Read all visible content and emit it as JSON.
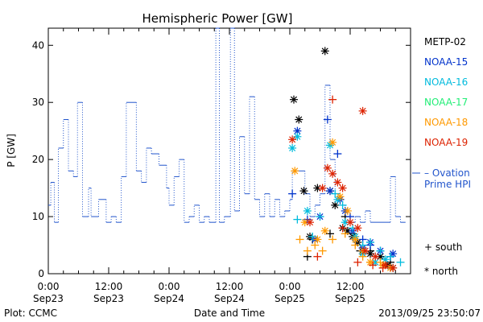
{
  "chart_data": {
    "type": "scatter",
    "title": "Hemispheric Power [GW]",
    "ylabel": "P [GW]",
    "xlabel": "Date and Time",
    "ylim": [
      0,
      43
    ],
    "y_ticks": [
      0,
      10,
      20,
      30,
      40
    ],
    "x_range_hours": [
      0,
      72
    ],
    "x_ticks": [
      {
        "hours": 0,
        "time": "0:00",
        "date": "Sep23"
      },
      {
        "hours": 12,
        "time": "12:00",
        "date": "Sep23"
      },
      {
        "hours": 24,
        "time": "0:00",
        "date": "Sep24"
      },
      {
        "hours": 36,
        "time": "12:00",
        "date": "Sep24"
      },
      {
        "hours": 48,
        "time": "0:00",
        "date": "Sep25"
      },
      {
        "hours": 60,
        "time": "12:00",
        "date": "Sep25"
      }
    ],
    "footer_left": "Plot: CCMC",
    "footer_right": "2013/09/25 23:50:07",
    "ovation": {
      "label_line1": "– Ovation",
      "label_line2": "Prime HPI",
      "color": "#2255cc",
      "points": [
        [
          0,
          12
        ],
        [
          0.5,
          16
        ],
        [
          1.2,
          9
        ],
        [
          2,
          22
        ],
        [
          3,
          27
        ],
        [
          4,
          18
        ],
        [
          5,
          17
        ],
        [
          5.8,
          30
        ],
        [
          6.8,
          10
        ],
        [
          8,
          15
        ],
        [
          8.5,
          10
        ],
        [
          10,
          13
        ],
        [
          11.5,
          9
        ],
        [
          12.5,
          10
        ],
        [
          13.5,
          9
        ],
        [
          14.5,
          17
        ],
        [
          15.5,
          30
        ],
        [
          17.5,
          18
        ],
        [
          18.5,
          16
        ],
        [
          19.5,
          22
        ],
        [
          20.5,
          21
        ],
        [
          22,
          19
        ],
        [
          23.5,
          15
        ],
        [
          24,
          12
        ],
        [
          25,
          17
        ],
        [
          26,
          20
        ],
        [
          27,
          9
        ],
        [
          28,
          10
        ],
        [
          29,
          12
        ],
        [
          30,
          9
        ],
        [
          31,
          10
        ],
        [
          32,
          9
        ],
        [
          33.3,
          43
        ],
        [
          34,
          9
        ],
        [
          35,
          10
        ],
        [
          36.2,
          43
        ],
        [
          37,
          11
        ],
        [
          38,
          24
        ],
        [
          39,
          14
        ],
        [
          40,
          31
        ],
        [
          41,
          13
        ],
        [
          42,
          10
        ],
        [
          43,
          14
        ],
        [
          44,
          10
        ],
        [
          45,
          13
        ],
        [
          46,
          10
        ],
        [
          47,
          11
        ],
        [
          48,
          13
        ],
        [
          48.5,
          18
        ],
        [
          51,
          14
        ],
        [
          52,
          10
        ],
        [
          53,
          12
        ],
        [
          54,
          14
        ],
        [
          55,
          33
        ],
        [
          56,
          20
        ],
        [
          57,
          14
        ],
        [
          58,
          12
        ],
        [
          59,
          9
        ],
        [
          61,
          10
        ],
        [
          62,
          9
        ],
        [
          63,
          11
        ],
        [
          64,
          9
        ],
        [
          68,
          17
        ],
        [
          69,
          10
        ],
        [
          70,
          9
        ]
      ]
    },
    "series": [
      {
        "name": "METP-02",
        "color": "#000000",
        "south": [
          [
            51.5,
            3
          ],
          [
            52.5,
            6
          ],
          [
            56,
            7
          ],
          [
            58,
            13
          ],
          [
            59,
            10
          ],
          [
            60.5,
            7
          ],
          [
            62,
            4
          ],
          [
            64,
            4
          ],
          [
            66,
            3
          ],
          [
            68,
            2
          ]
        ],
        "north": [
          [
            48.8,
            30.5
          ],
          [
            49.8,
            27
          ],
          [
            50.8,
            14.5
          ],
          [
            52,
            6.5
          ],
          [
            53.5,
            15
          ],
          [
            55,
            39
          ],
          [
            56,
            14.5
          ],
          [
            57,
            12
          ],
          [
            58.5,
            8
          ],
          [
            59.5,
            7.5
          ],
          [
            60.5,
            6.5
          ],
          [
            61.5,
            5.5
          ],
          [
            62.5,
            4
          ],
          [
            64,
            3.5
          ],
          [
            66,
            3
          ],
          [
            67.5,
            1.5
          ],
          [
            68.5,
            1
          ]
        ]
      },
      {
        "name": "NOAA-15",
        "color": "#0033cc",
        "south": [
          [
            48.5,
            14
          ],
          [
            51.5,
            9.5
          ],
          [
            55.5,
            27
          ],
          [
            57.5,
            21
          ],
          [
            60,
            10
          ],
          [
            62.5,
            6
          ],
          [
            64,
            5
          ],
          [
            66,
            4
          ],
          [
            68,
            3
          ]
        ],
        "north": [
          [
            49.5,
            25
          ],
          [
            53,
            6
          ],
          [
            54,
            10
          ],
          [
            56,
            14.5
          ],
          [
            58,
            13
          ],
          [
            59,
            11
          ],
          [
            60.5,
            7.5
          ],
          [
            62.5,
            4.5
          ],
          [
            64,
            5.5
          ],
          [
            66,
            4
          ],
          [
            68.5,
            3.5
          ]
        ]
      },
      {
        "name": "NOAA-16",
        "color": "#00bbdd",
        "south": [
          [
            49.5,
            9.5
          ],
          [
            52.5,
            6.5
          ],
          [
            54,
            10
          ],
          [
            57,
            14
          ],
          [
            58.5,
            12
          ],
          [
            60.5,
            8
          ],
          [
            62.5,
            5
          ],
          [
            64,
            5.5
          ],
          [
            66,
            4
          ],
          [
            68,
            3
          ],
          [
            70,
            2
          ]
        ],
        "north": [
          [
            48.5,
            22
          ],
          [
            49.5,
            24
          ],
          [
            51.5,
            11
          ],
          [
            56,
            22.5
          ],
          [
            57.5,
            13
          ],
          [
            59,
            9
          ],
          [
            61,
            6.5
          ],
          [
            62.5,
            3.5
          ],
          [
            65,
            2
          ],
          [
            67,
            2.5
          ]
        ]
      },
      {
        "name": "NOAA-17",
        "color": "#22ee77",
        "south": [],
        "north": []
      },
      {
        "name": "NOAA-18",
        "color": "#ff9900",
        "south": [
          [
            50,
            6
          ],
          [
            51.5,
            4
          ],
          [
            53,
            5
          ],
          [
            54.5,
            4
          ],
          [
            56.5,
            6
          ],
          [
            59,
            7
          ],
          [
            61,
            5
          ],
          [
            62.5,
            3
          ],
          [
            64,
            2
          ],
          [
            66,
            2
          ]
        ],
        "north": [
          [
            49,
            18
          ],
          [
            51,
            9
          ],
          [
            53.5,
            6
          ],
          [
            55,
            7.5
          ],
          [
            56.5,
            23
          ],
          [
            58,
            13.5
          ],
          [
            59.5,
            11
          ],
          [
            61,
            6
          ],
          [
            62.5,
            4
          ],
          [
            64,
            2
          ],
          [
            66.5,
            1.5
          ],
          [
            68,
            1
          ]
        ]
      },
      {
        "name": "NOAA-19",
        "color": "#dd2200",
        "south": [
          [
            53.5,
            3
          ],
          [
            56.5,
            30.5
          ],
          [
            58.5,
            8
          ],
          [
            61.5,
            2
          ],
          [
            64.5,
            1.5
          ],
          [
            66.5,
            1
          ]
        ],
        "north": [
          [
            48.5,
            23.5
          ],
          [
            52,
            9
          ],
          [
            54.5,
            15
          ],
          [
            55.5,
            18.5
          ],
          [
            56.5,
            17.5
          ],
          [
            57.5,
            16
          ],
          [
            58.5,
            15
          ],
          [
            60,
            9
          ],
          [
            61.5,
            8
          ],
          [
            62.5,
            28.5
          ],
          [
            63,
            4
          ],
          [
            65,
            3
          ],
          [
            67,
            1.5
          ],
          [
            68.5,
            1
          ]
        ]
      }
    ],
    "marker_legend": {
      "south": "+ south",
      "north": "* north"
    }
  }
}
